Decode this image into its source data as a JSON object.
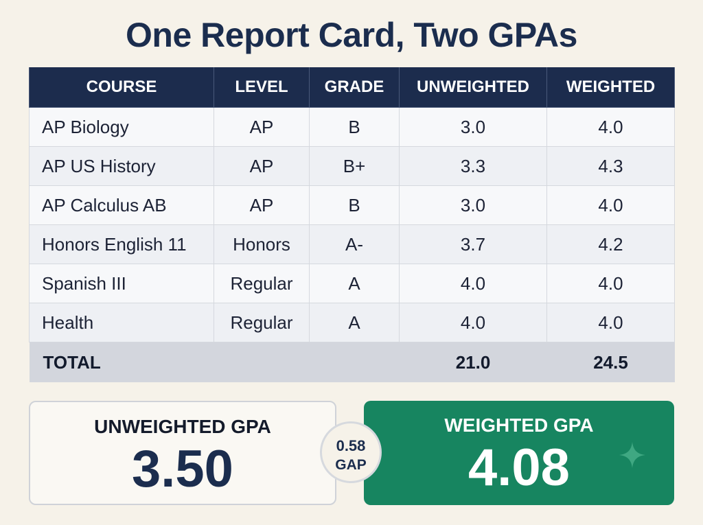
{
  "title": "One Report Card, Two GPAs",
  "table": {
    "headers": {
      "course": "COURSE",
      "level": "LEVEL",
      "grade": "GRADE",
      "unweighted": "UNWEIGHTED",
      "weighted": "WEIGHTED"
    },
    "rows": [
      {
        "course": "AP Biology",
        "level": "AP",
        "grade": "B",
        "unweighted": "3.0",
        "weighted": "4.0"
      },
      {
        "course": "AP US History",
        "level": "AP",
        "grade": "B+",
        "unweighted": "3.3",
        "weighted": "4.3"
      },
      {
        "course": "AP Calculus AB",
        "level": "AP",
        "grade": "B",
        "unweighted": "3.0",
        "weighted": "4.0"
      },
      {
        "course": "Honors English 11",
        "level": "Honors",
        "grade": "A-",
        "unweighted": "3.7",
        "weighted": "4.2"
      },
      {
        "course": "Spanish III",
        "level": "Regular",
        "grade": "A",
        "unweighted": "4.0",
        "weighted": "4.0"
      },
      {
        "course": "Health",
        "level": "Regular",
        "grade": "A",
        "unweighted": "4.0",
        "weighted": "4.0"
      }
    ],
    "total": {
      "label": "TOTAL",
      "unweighted": "21.0",
      "weighted": "24.5"
    }
  },
  "summary": {
    "unweighted": {
      "label": "UNWEIGHTED GPA",
      "value": "3.50"
    },
    "weighted": {
      "label": "WEIGHTED GPA",
      "value": "4.08"
    },
    "gap": {
      "value": "0.58",
      "label": "GAP"
    }
  },
  "colors": {
    "header_bg": "#1c2c4d",
    "weighted_card": "#178560",
    "title": "#1b2d4e",
    "background": "#f6f2e9"
  },
  "icons": {
    "sparkle": "sparkle-icon"
  }
}
